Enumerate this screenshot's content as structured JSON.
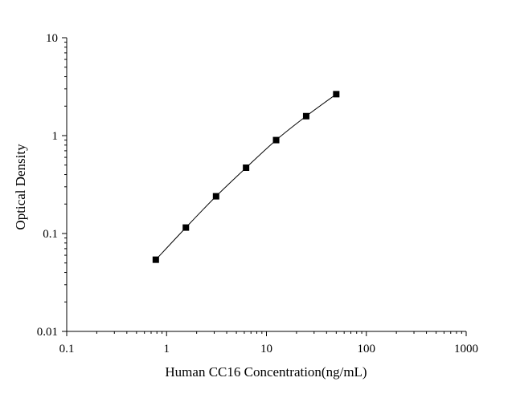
{
  "chart_data": {
    "type": "scatter",
    "xlabel": "Human CC16 Concentration(ng/mL)",
    "ylabel": "Optical Density",
    "x_scale": "log",
    "y_scale": "log",
    "xlim": [
      0.1,
      1000
    ],
    "ylim": [
      0.01,
      10
    ],
    "x_ticks": [
      "0.1",
      "1",
      "10",
      "100",
      "1000"
    ],
    "y_ticks": [
      "0.01",
      "0.1",
      "1",
      "10"
    ],
    "grid": false,
    "legend": "none",
    "marker": "square",
    "line": "smooth-fit",
    "colors": {
      "marker": "#000000",
      "line": "#000000",
      "axis": "#000000"
    },
    "series": [
      {
        "x": [
          0.78,
          1.56,
          3.13,
          6.25,
          12.5,
          25,
          50
        ],
        "y": [
          0.054,
          0.115,
          0.24,
          0.47,
          0.9,
          1.58,
          2.65
        ]
      }
    ]
  }
}
